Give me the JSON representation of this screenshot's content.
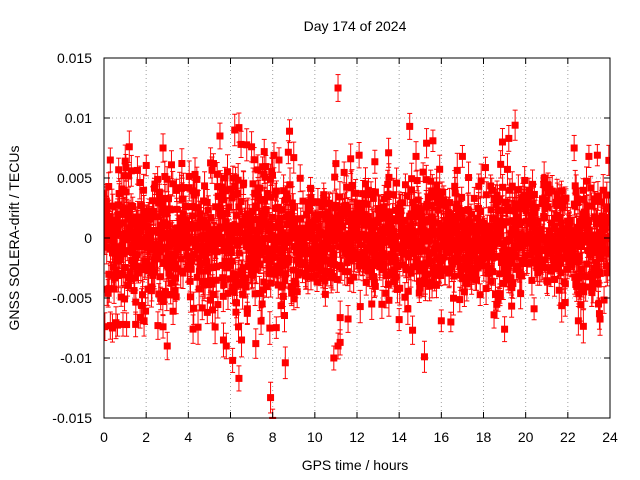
{
  "chart_data": {
    "type": "scatter",
    "title": "Day 174 of 2024",
    "xlabel": "GPS time / hours",
    "ylabel": "GNSS SOLERA-drift / TECUs",
    "xlim": [
      0,
      24
    ],
    "ylim": [
      -0.015,
      0.015
    ],
    "x_ticks": [
      0,
      2,
      4,
      6,
      8,
      10,
      12,
      14,
      16,
      18,
      20,
      22,
      24
    ],
    "x_tick_labels": [
      "0",
      "2",
      "4",
      "6",
      "8",
      "10",
      "12",
      "14",
      "16",
      "18",
      "20",
      "22",
      "24"
    ],
    "y_ticks": [
      -0.015,
      -0.01,
      -0.005,
      0,
      0.005,
      0.01,
      0.015
    ],
    "y_tick_labels": [
      "-0.015",
      "-0.01",
      "-0.005",
      "0",
      "0.005",
      "0.01",
      "0.015"
    ],
    "grid": true,
    "series": [
      {
        "name": "SOLERA-drift",
        "color": "#ff0000",
        "marker": "square",
        "error_bars": true,
        "typical_error": 0.0011,
        "band_half_width": 0.0026,
        "band_shape": [
          [
            0,
            1.15
          ],
          [
            1,
            1.05
          ],
          [
            2,
            1.0
          ],
          [
            3,
            0.95
          ],
          [
            4,
            1.0
          ],
          [
            5,
            1.15
          ],
          [
            6,
            1.25
          ],
          [
            7,
            1.2
          ],
          [
            8,
            1.2
          ],
          [
            9,
            1.0
          ],
          [
            10,
            0.75
          ],
          [
            11,
            0.8
          ],
          [
            12,
            0.85
          ],
          [
            13,
            0.9
          ],
          [
            14,
            1.0
          ],
          [
            15,
            1.0
          ],
          [
            16,
            0.95
          ],
          [
            17,
            0.9
          ],
          [
            18,
            0.95
          ],
          [
            19,
            1.0
          ],
          [
            20,
            0.85
          ],
          [
            21,
            0.85
          ],
          [
            22,
            0.9
          ],
          [
            23,
            0.95
          ],
          [
            24,
            1.0
          ]
        ],
        "outliers": [
          {
            "x": 0.3,
            "y": 0.0065
          },
          {
            "x": 0.3,
            "y": -0.0073
          },
          {
            "x": 0.4,
            "y": -0.0075
          },
          {
            "x": 0.9,
            "y": -0.0072
          },
          {
            "x": 1.2,
            "y": 0.0076
          },
          {
            "x": 1.5,
            "y": -0.0072
          },
          {
            "x": 1.9,
            "y": -0.0069
          },
          {
            "x": 2.8,
            "y": 0.0075
          },
          {
            "x": 2.8,
            "y": -0.0074
          },
          {
            "x": 3.0,
            "y": -0.009
          },
          {
            "x": 3.2,
            "y": 0.0061
          },
          {
            "x": 4.1,
            "y": -0.0049
          },
          {
            "x": 4.9,
            "y": -0.0062
          },
          {
            "x": 5.5,
            "y": 0.0085
          },
          {
            "x": 5.8,
            "y": -0.009
          },
          {
            "x": 6.1,
            "y": -0.0102
          },
          {
            "x": 6.2,
            "y": 0.009
          },
          {
            "x": 6.4,
            "y": 0.0092
          },
          {
            "x": 6.4,
            "y": -0.0117
          },
          {
            "x": 6.5,
            "y": 0.0078
          },
          {
            "x": 6.8,
            "y": -0.0059
          },
          {
            "x": 7.0,
            "y": 0.0076
          },
          {
            "x": 7.2,
            "y": -0.0088
          },
          {
            "x": 7.5,
            "y": -0.0055
          },
          {
            "x": 7.6,
            "y": 0.0072
          },
          {
            "x": 7.9,
            "y": -0.0133
          },
          {
            "x": 8.0,
            "y": -0.0152
          },
          {
            "x": 8.3,
            "y": 0.0065
          },
          {
            "x": 8.6,
            "y": -0.0104
          },
          {
            "x": 8.8,
            "y": 0.0089
          },
          {
            "x": 8.9,
            "y": -0.0046
          },
          {
            "x": 9.0,
            "y": 0.0067
          },
          {
            "x": 10.5,
            "y": -0.0047
          },
          {
            "x": 10.9,
            "y": -0.01
          },
          {
            "x": 11.0,
            "y": 0.0062
          },
          {
            "x": 11.1,
            "y": -0.009
          },
          {
            "x": 11.1,
            "y": 0.0125
          },
          {
            "x": 11.2,
            "y": -0.0087
          },
          {
            "x": 11.7,
            "y": 0.0066
          },
          {
            "x": 12.1,
            "y": 0.0069
          },
          {
            "x": 12.7,
            "y": -0.0055
          },
          {
            "x": 13.5,
            "y": 0.0071
          },
          {
            "x": 14.0,
            "y": -0.0068
          },
          {
            "x": 14.5,
            "y": 0.0093
          },
          {
            "x": 14.8,
            "y": 0.0068
          },
          {
            "x": 15.2,
            "y": -0.0099
          },
          {
            "x": 15.3,
            "y": 0.0079
          },
          {
            "x": 15.6,
            "y": 0.0081
          },
          {
            "x": 16.0,
            "y": -0.0069
          },
          {
            "x": 17.0,
            "y": 0.0068
          },
          {
            "x": 18.5,
            "y": -0.0064
          },
          {
            "x": 18.9,
            "y": 0.008
          },
          {
            "x": 19.0,
            "y": -0.0076
          },
          {
            "x": 19.2,
            "y": 0.0083
          },
          {
            "x": 19.5,
            "y": 0.0094
          },
          {
            "x": 20.4,
            "y": -0.0059
          },
          {
            "x": 22.3,
            "y": 0.0075
          },
          {
            "x": 22.5,
            "y": -0.0069
          },
          {
            "x": 23.0,
            "y": 0.0068
          },
          {
            "x": 23.4,
            "y": 0.0069
          },
          {
            "x": 23.5,
            "y": -0.0063
          }
        ]
      }
    ]
  }
}
